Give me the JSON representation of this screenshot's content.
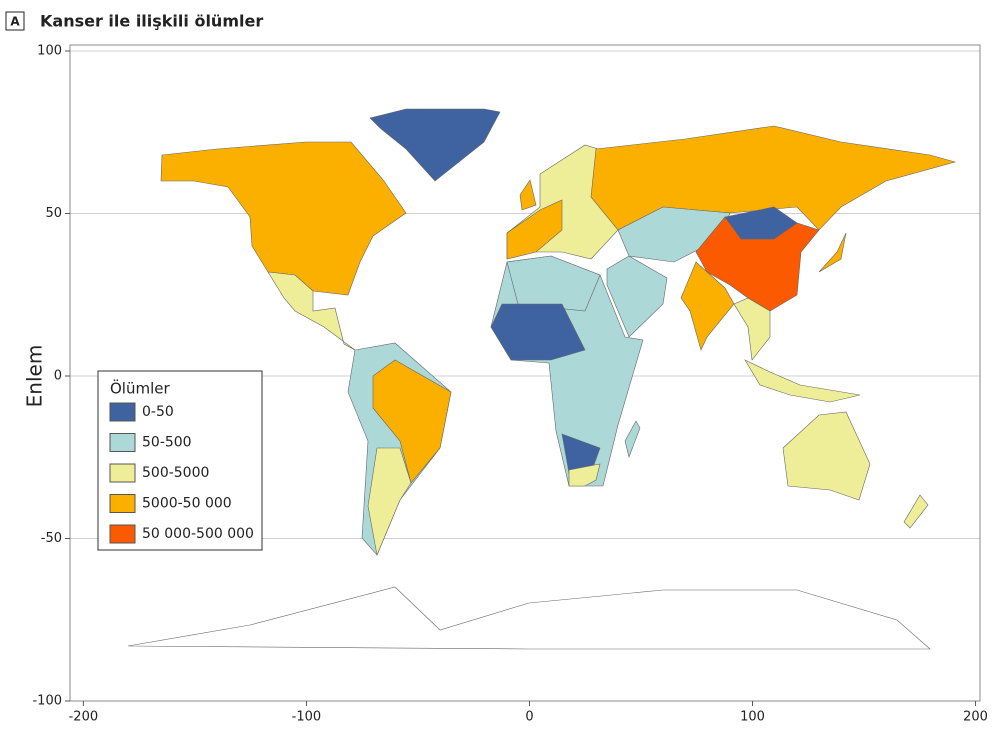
{
  "chart_data": {
    "type": "choropleth",
    "panel_label": "A",
    "title": "Kanser ile ilişkili ölümler",
    "y_axis_label": "Enlem",
    "xlim": [
      -206,
      202
    ],
    "ylim": [
      -100,
      100
    ],
    "xticks": [
      -200,
      -100,
      0,
      100,
      200
    ],
    "yticks": [
      -100,
      -50,
      0,
      50,
      100
    ],
    "grid": true,
    "legend": {
      "title": "Ölümler",
      "position": "lower left",
      "items": [
        {
          "label": "0-50",
          "color": "#3f63a0"
        },
        {
          "label": "50-500",
          "color": "#acd8d8"
        },
        {
          "label": "500-5000",
          "color": "#eeee99"
        },
        {
          "label": "5000-50 000",
          "color": "#fbb000"
        },
        {
          "label": "50 000-500 000",
          "color": "#fb5a00"
        }
      ]
    }
  }
}
